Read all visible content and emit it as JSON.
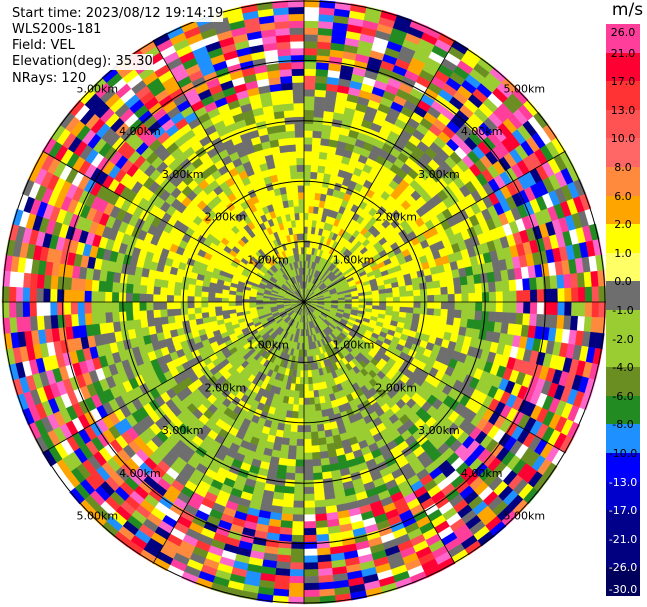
{
  "header": {
    "start_time": "Start time: 2023/08/12 19:14:19",
    "instrument": "WLS200s-181",
    "field": "Field: VEL",
    "elevation": "Elevation(deg): 35.30",
    "nrays": "NRays: 120"
  },
  "colorbar": {
    "unit": "m/s",
    "labels": [
      "26.0",
      "21.0",
      "17.0",
      "13.0",
      "10.0",
      "8.0",
      "6.0",
      "2.0",
      "1.0",
      "0.0",
      "-1.0",
      "-2.0",
      "-4.0",
      "-6.0",
      "-8.0",
      "-10.0",
      "-13.0",
      "-17.0",
      "-21.0",
      "-26.0",
      "-30.0"
    ],
    "colors": [
      "#ff3d9b",
      "#ff0033",
      "#ff3333",
      "#ff5252",
      "#ff6666",
      "#ff8a3d",
      "#ffa500",
      "#ffff00",
      "#ffff66",
      "#6e6e6e",
      "#9acd32",
      "#9acd32",
      "#6b8e23",
      "#228b22",
      "#1e90ff",
      "#0000ff",
      "#0000cd",
      "#00008b",
      "#000080",
      "#00005c"
    ],
    "light_labels": [
      "-13.0",
      "-17.0",
      "-21.0",
      "-26.0",
      "-30.0"
    ]
  },
  "range_labels": [
    "1.00km",
    "2.00km",
    "3.00km",
    "4.00km",
    "5.00km"
  ],
  "plot": {
    "nrays": 120,
    "max_range_km": 5.0
  }
}
